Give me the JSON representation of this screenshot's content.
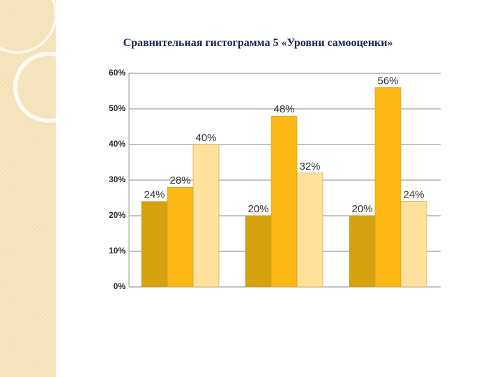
{
  "chart_data": {
    "type": "bar",
    "title": "Сравнительная гистограмма 5 «Уровни самооценки»",
    "categories": [
      null,
      null,
      null
    ],
    "series": [
      {
        "color": "#d6a10f",
        "values": [
          24,
          20,
          20
        ],
        "value_labels": [
          "24%",
          "20%",
          "20%"
        ]
      },
      {
        "color": "#fdb913",
        "values": [
          28,
          48,
          56
        ],
        "value_labels": [
          "28%",
          "48%",
          "56%"
        ]
      },
      {
        "color": "#ffe09c",
        "values": [
          40,
          32,
          24
        ],
        "value_labels": [
          "40%",
          "32%",
          "24%"
        ]
      }
    ],
    "ylim": [
      0,
      60
    ],
    "yticks": [
      {
        "value": 0,
        "label": "0%"
      },
      {
        "value": 10,
        "label": "10%"
      },
      {
        "value": 20,
        "label": "20%"
      },
      {
        "value": 30,
        "label": "30%"
      },
      {
        "value": 40,
        "label": "40%"
      },
      {
        "value": 50,
        "label": "50%"
      },
      {
        "value": 60,
        "label": "60%"
      }
    ],
    "grid": true
  }
}
